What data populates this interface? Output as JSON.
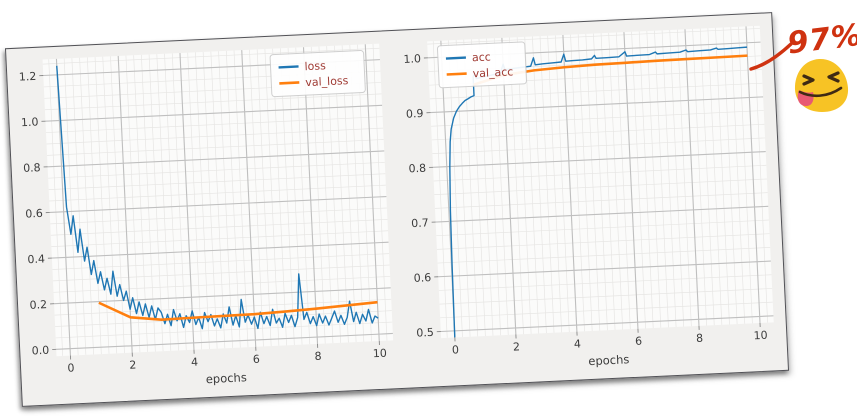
{
  "canvas": {
    "bg": "#ffffff"
  },
  "figure": {
    "rotation_deg": -2.7,
    "bg": "#f1f0ee",
    "plot_bg": "#fbfbfa",
    "border_color": "#515156",
    "major_grid_color": "#bfbfbf",
    "minor_grid_color": "#e7e6e4",
    "tick_color": "#3c3c3c",
    "tick_mark_color": "#888888",
    "legend_text_color": "#a03c35",
    "legend_bg": "#ffffff",
    "legend_border": "#cccccc"
  },
  "annotation": {
    "text": "97%",
    "color": "#cf3210",
    "emoji": {
      "name": "squinting-face-with-tongue",
      "body_color": "#f7c325",
      "stroke_color": "#3f2a14",
      "tongue_color": "#e85a72"
    }
  },
  "chart_data": [
    {
      "type": "line",
      "title": "",
      "xlabel": "epochs",
      "ylabel": "",
      "xlim": [
        -0.45,
        10.45
      ],
      "ylim": [
        -0.03,
        1.27
      ],
      "xticks": [
        0,
        2,
        4,
        6,
        8,
        10
      ],
      "yticks": [
        0.0,
        0.2,
        0.4,
        0.6,
        0.8,
        1.0,
        1.2
      ],
      "ytick_decimals": 1,
      "minor_x": 0.25,
      "minor_y": 0.05,
      "grid": "both",
      "legend": {
        "loc": "upper-right",
        "inset_x": 16,
        "inset_y": 6
      },
      "series": [
        {
          "name": "loss",
          "color": "#1f77b4",
          "width": 1.4,
          "x_start": 0,
          "x_step": 0.1,
          "y": [
            1.24,
            0.62,
            0.5,
            0.58,
            0.42,
            0.52,
            0.38,
            0.44,
            0.32,
            0.38,
            0.28,
            0.33,
            0.25,
            0.3,
            0.23,
            0.33,
            0.22,
            0.27,
            0.2,
            0.24,
            0.16,
            0.21,
            0.14,
            0.19,
            0.13,
            0.18,
            0.12,
            0.17,
            0.11,
            0.16,
            0.14,
            0.09,
            0.13,
            0.08,
            0.15,
            0.1,
            0.13,
            0.07,
            0.12,
            0.09,
            0.14,
            0.08,
            0.11,
            0.06,
            0.13,
            0.09,
            0.12,
            0.07,
            0.1,
            0.06,
            0.12,
            0.08,
            0.15,
            0.07,
            0.11,
            0.06,
            0.18,
            0.08,
            0.11,
            0.07,
            0.1,
            0.05,
            0.12,
            0.07,
            0.1,
            0.06,
            0.13,
            0.07,
            0.09,
            0.05,
            0.11,
            0.07,
            0.1,
            0.05,
            0.09,
            0.28,
            0.08,
            0.11,
            0.06,
            0.09,
            0.05,
            0.1,
            0.06,
            0.09,
            0.05,
            0.08,
            0.11,
            0.06,
            0.09,
            0.05,
            0.08,
            0.15,
            0.06,
            0.1,
            0.05,
            0.09,
            0.06,
            0.11,
            0.05,
            0.08,
            0.07
          ]
        },
        {
          "name": "val_loss",
          "color": "#ff7f0e",
          "width": 2.6,
          "x": [
            1,
            2,
            3,
            4,
            5,
            6,
            7,
            8,
            9,
            10
          ],
          "y": [
            0.195,
            0.125,
            0.108,
            0.11,
            0.112,
            0.113,
            0.118,
            0.124,
            0.132,
            0.14
          ]
        }
      ]
    },
    {
      "type": "line",
      "title": "",
      "xlabel": "epochs",
      "ylabel": "",
      "xlim": [
        -0.45,
        10.45
      ],
      "ylim": [
        0.488,
        1.03
      ],
      "xticks": [
        0,
        2,
        4,
        6,
        8,
        10
      ],
      "yticks": [
        0.5,
        0.6,
        0.7,
        0.8,
        0.9,
        1.0
      ],
      "ytick_decimals": 1,
      "minor_x": 0.25,
      "minor_y": 0.025,
      "grid": "both",
      "legend": {
        "loc": "upper-left",
        "inset_x": 10,
        "inset_y": 5
      },
      "series": [
        {
          "name": "acc",
          "color": "#1f77b4",
          "width": 1.4,
          "x": [
            0,
            0.02,
            0.05,
            0.1,
            0.15,
            0.2,
            0.3,
            0.4,
            0.5,
            0.6,
            0.7,
            0.8,
            0.9,
            1.0,
            1.0,
            1.05,
            1.1,
            1.3,
            1.5,
            1.7,
            1.9,
            2.0,
            2.05,
            2.3,
            2.6,
            2.9,
            3.0,
            3.05,
            3.3,
            3.6,
            3.9,
            4.0,
            4.05,
            4.3,
            4.6,
            4.9,
            5.0,
            5.05,
            5.4,
            5.8,
            6.0,
            6.05,
            6.4,
            6.8,
            7.0,
            7.05,
            7.4,
            7.8,
            8.0,
            8.05,
            8.4,
            8.8,
            9.0,
            9.05,
            9.4,
            9.7,
            10.0
          ],
          "y": [
            0.488,
            0.62,
            0.72,
            0.8,
            0.845,
            0.868,
            0.888,
            0.9,
            0.908,
            0.914,
            0.919,
            0.922,
            0.925,
            0.927,
            0.962,
            0.966,
            0.958,
            0.96,
            0.962,
            0.964,
            0.966,
            0.982,
            0.972,
            0.973,
            0.9745,
            0.976,
            0.991,
            0.978,
            0.979,
            0.98,
            0.981,
            0.995,
            0.982,
            0.9825,
            0.983,
            0.984,
            0.99,
            0.9845,
            0.985,
            0.9855,
            0.994,
            0.986,
            0.9865,
            0.987,
            0.991,
            0.9875,
            0.988,
            0.9885,
            0.992,
            0.989,
            0.9895,
            0.99,
            0.993,
            0.9905,
            0.991,
            0.9915,
            0.992
          ]
        },
        {
          "name": "val_acc",
          "color": "#ff7f0e",
          "width": 2.6,
          "x": [
            1,
            2,
            3,
            4,
            5,
            6,
            7,
            8,
            9,
            10
          ],
          "y": [
            0.947,
            0.962,
            0.968,
            0.971,
            0.973,
            0.974,
            0.9748,
            0.9755,
            0.976,
            0.9765
          ]
        }
      ]
    }
  ]
}
